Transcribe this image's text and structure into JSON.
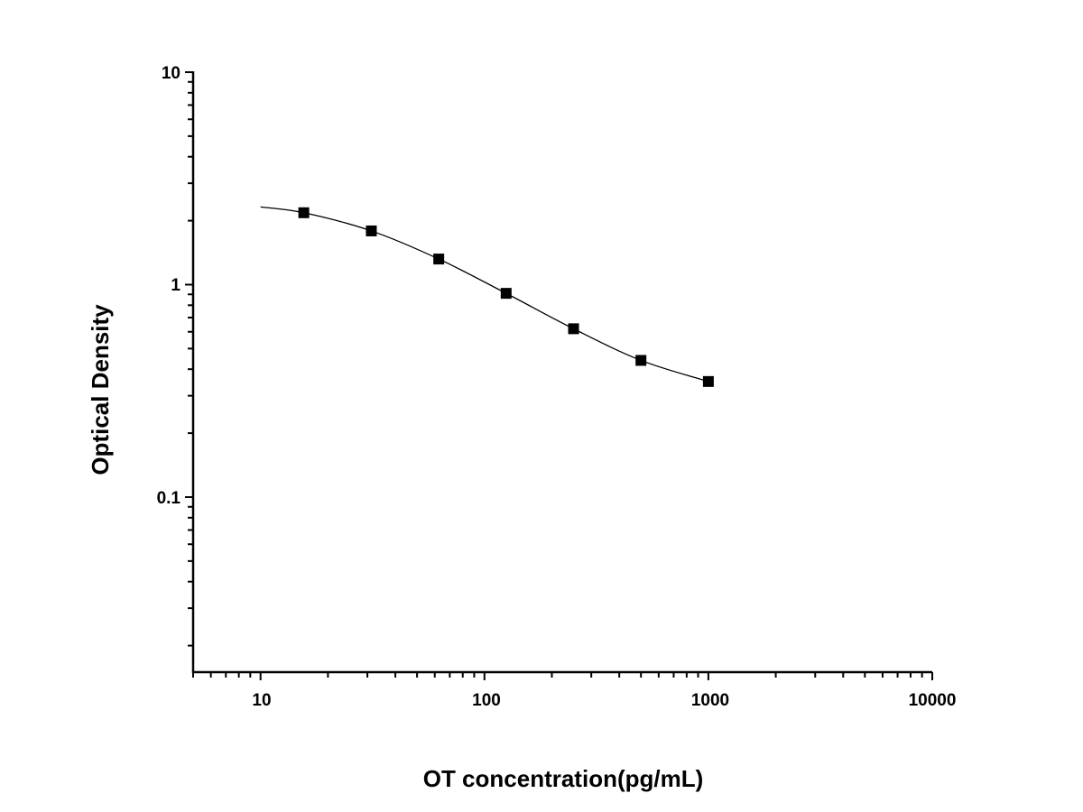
{
  "chart_data": {
    "type": "scatter",
    "title": "",
    "xlabel": "OT concentration(pg/mL)",
    "ylabel": "Optical Density",
    "x_scale": "log",
    "y_scale": "log",
    "xlim": [
      5,
      10000
    ],
    "ylim": [
      0.015,
      10
    ],
    "x_ticks": [
      "10",
      "100",
      "1000",
      "10000"
    ],
    "y_ticks": [
      "0.1",
      "1",
      "10"
    ],
    "grid": false,
    "legend": "none",
    "series": [
      {
        "x": [
          15.6,
          31.25,
          62.5,
          125,
          250,
          500,
          1000
        ],
        "y": [
          2.18,
          1.79,
          1.32,
          0.91,
          0.62,
          0.44,
          0.35
        ],
        "marker": "square",
        "fit_line": true,
        "fit_x_range": [
          10,
          1000
        ],
        "color": "#000000"
      }
    ]
  }
}
